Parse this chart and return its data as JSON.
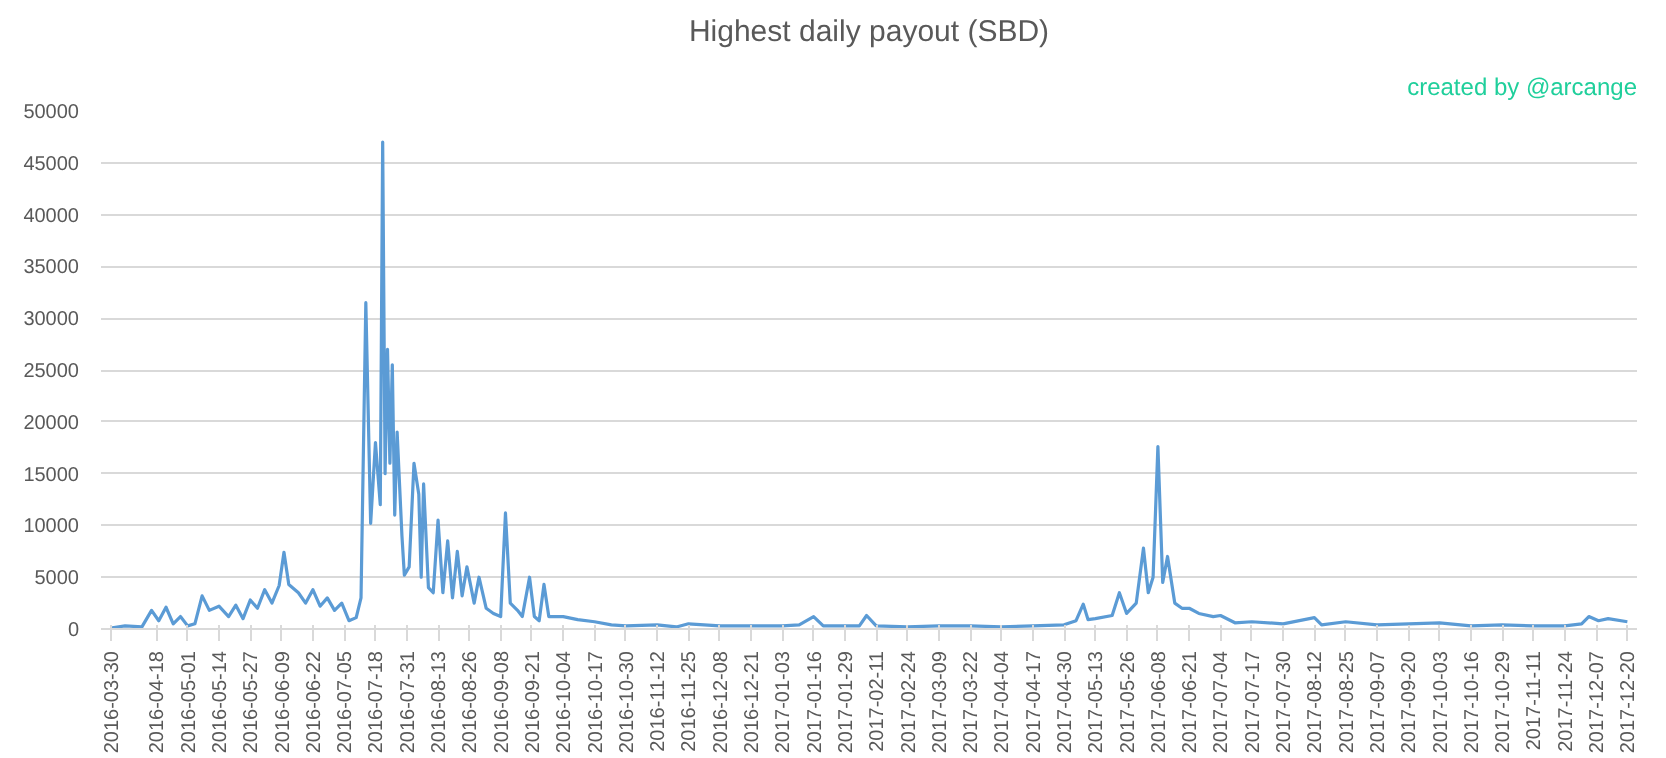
{
  "chart_data": {
    "type": "line",
    "title": "Highest daily payout (SBD)",
    "annotations": [
      "created by @arcange"
    ],
    "x": [
      "2016-03-30",
      "2016-04-05",
      "2016-04-12",
      "2016-04-16",
      "2016-04-19",
      "2016-04-22",
      "2016-04-25",
      "2016-04-28",
      "2016-05-01",
      "2016-05-04",
      "2016-05-07",
      "2016-05-10",
      "2016-05-14",
      "2016-05-18",
      "2016-05-21",
      "2016-05-24",
      "2016-05-27",
      "2016-05-30",
      "2016-06-02",
      "2016-06-05",
      "2016-06-08",
      "2016-06-10",
      "2016-06-12",
      "2016-06-16",
      "2016-06-19",
      "2016-06-22",
      "2016-06-25",
      "2016-06-28",
      "2016-07-01",
      "2016-07-04",
      "2016-07-07",
      "2016-07-10",
      "2016-07-12",
      "2016-07-14",
      "2016-07-16",
      "2016-07-18",
      "2016-07-20",
      "2016-07-21",
      "2016-07-22",
      "2016-07-23",
      "2016-07-24",
      "2016-07-25",
      "2016-07-26",
      "2016-07-27",
      "2016-07-29",
      "2016-07-30",
      "2016-08-01",
      "2016-08-03",
      "2016-08-05",
      "2016-08-06",
      "2016-08-07",
      "2016-08-09",
      "2016-08-11",
      "2016-08-13",
      "2016-08-15",
      "2016-08-17",
      "2016-08-19",
      "2016-08-21",
      "2016-08-23",
      "2016-08-25",
      "2016-08-28",
      "2016-08-30",
      "2016-09-02",
      "2016-09-05",
      "2016-09-08",
      "2016-09-10",
      "2016-09-12",
      "2016-09-15",
      "2016-09-17",
      "2016-09-20",
      "2016-09-22",
      "2016-09-24",
      "2016-09-26",
      "2016-09-28",
      "2016-10-04",
      "2016-10-10",
      "2016-10-17",
      "2016-10-24",
      "2016-10-30",
      "2016-11-12",
      "2016-11-20",
      "2016-11-25",
      "2016-12-08",
      "2016-12-21",
      "2017-01-03",
      "2017-01-10",
      "2017-01-16",
      "2017-01-20",
      "2017-01-29",
      "2017-02-04",
      "2017-02-07",
      "2017-02-11",
      "2017-02-24",
      "2017-03-09",
      "2017-03-22",
      "2017-04-04",
      "2017-04-17",
      "2017-04-30",
      "2017-05-05",
      "2017-05-08",
      "2017-05-10",
      "2017-05-13",
      "2017-05-20",
      "2017-05-23",
      "2017-05-26",
      "2017-05-30",
      "2017-06-02",
      "2017-06-04",
      "2017-06-06",
      "2017-06-08",
      "2017-06-10",
      "2017-06-12",
      "2017-06-15",
      "2017-06-18",
      "2017-06-21",
      "2017-06-25",
      "2017-07-01",
      "2017-07-04",
      "2017-07-10",
      "2017-07-17",
      "2017-07-30",
      "2017-08-12",
      "2017-08-15",
      "2017-08-25",
      "2017-09-07",
      "2017-09-20",
      "2017-10-03",
      "2017-10-16",
      "2017-10-29",
      "2017-11-11",
      "2017-11-24",
      "2017-12-01",
      "2017-12-04",
      "2017-12-08",
      "2017-12-12",
      "2017-12-20"
    ],
    "series": [
      {
        "color": "#5b9bd5",
        "values": [
          100,
          300,
          200,
          1800,
          800,
          2100,
          500,
          1200,
          300,
          500,
          3200,
          1800,
          2200,
          1200,
          2300,
          1000,
          2800,
          2000,
          3800,
          2500,
          4200,
          7400,
          4300,
          3500,
          2500,
          3800,
          2200,
          3000,
          1800,
          2500,
          800,
          1100,
          3000,
          31500,
          10200,
          18000,
          12000,
          47000,
          15000,
          27000,
          16000,
          25500,
          11000,
          19000,
          9000,
          5200,
          6000,
          16000,
          13000,
          5000,
          14000,
          4000,
          3500,
          10500,
          3500,
          8500,
          3000,
          7500,
          3200,
          6000,
          2500,
          5000,
          2000,
          1500,
          1200,
          11200,
          2500,
          1800,
          1200,
          5000,
          1200,
          800,
          4300,
          1200,
          1200,
          900,
          700,
          400,
          300,
          400,
          200,
          500,
          300,
          300,
          300,
          400,
          1200,
          300,
          300,
          300,
          1300,
          300,
          200,
          300,
          300,
          200,
          300,
          400,
          800,
          2400,
          900,
          1000,
          1300,
          3500,
          1500,
          2500,
          7800,
          3500,
          5000,
          17600,
          4500,
          7000,
          2500,
          2000,
          2000,
          1500,
          1200,
          1300,
          600,
          700,
          500,
          1100,
          400,
          700,
          400,
          500,
          600,
          300,
          400,
          300,
          300,
          500,
          1200,
          800,
          1000,
          700
        ]
      }
    ],
    "xlim": [
      "2016-03-26",
      "2017-12-24"
    ],
    "xticks": [
      "2016-03-30",
      "2016-04-18",
      "2016-05-01",
      "2016-05-14",
      "2016-05-27",
      "2016-06-09",
      "2016-06-22",
      "2016-07-05",
      "2016-07-18",
      "2016-07-31",
      "2016-08-13",
      "2016-08-26",
      "2016-09-08",
      "2016-09-21",
      "2016-10-04",
      "2016-10-17",
      "2016-10-30",
      "2016-11-12",
      "2016-11-25",
      "2016-12-08",
      "2016-12-21",
      "2017-01-03",
      "2017-01-16",
      "2017-01-29",
      "2017-02-11",
      "2017-02-24",
      "2017-03-09",
      "2017-03-22",
      "2017-04-04",
      "2017-04-17",
      "2017-04-30",
      "2017-05-13",
      "2017-05-26",
      "2017-06-08",
      "2017-06-21",
      "2017-07-04",
      "2017-07-17",
      "2017-07-30",
      "2017-08-12",
      "2017-08-25",
      "2017-09-07",
      "2017-09-20",
      "2017-10-03",
      "2017-10-16",
      "2017-10-29",
      "2017-11-11",
      "2017-11-24",
      "2017-12-07",
      "2017-12-20"
    ],
    "ylim": [
      0,
      50000
    ],
    "yticks": [
      0,
      5000,
      10000,
      15000,
      20000,
      25000,
      30000,
      35000,
      40000,
      45000,
      50000
    ],
    "grid": "y"
  }
}
